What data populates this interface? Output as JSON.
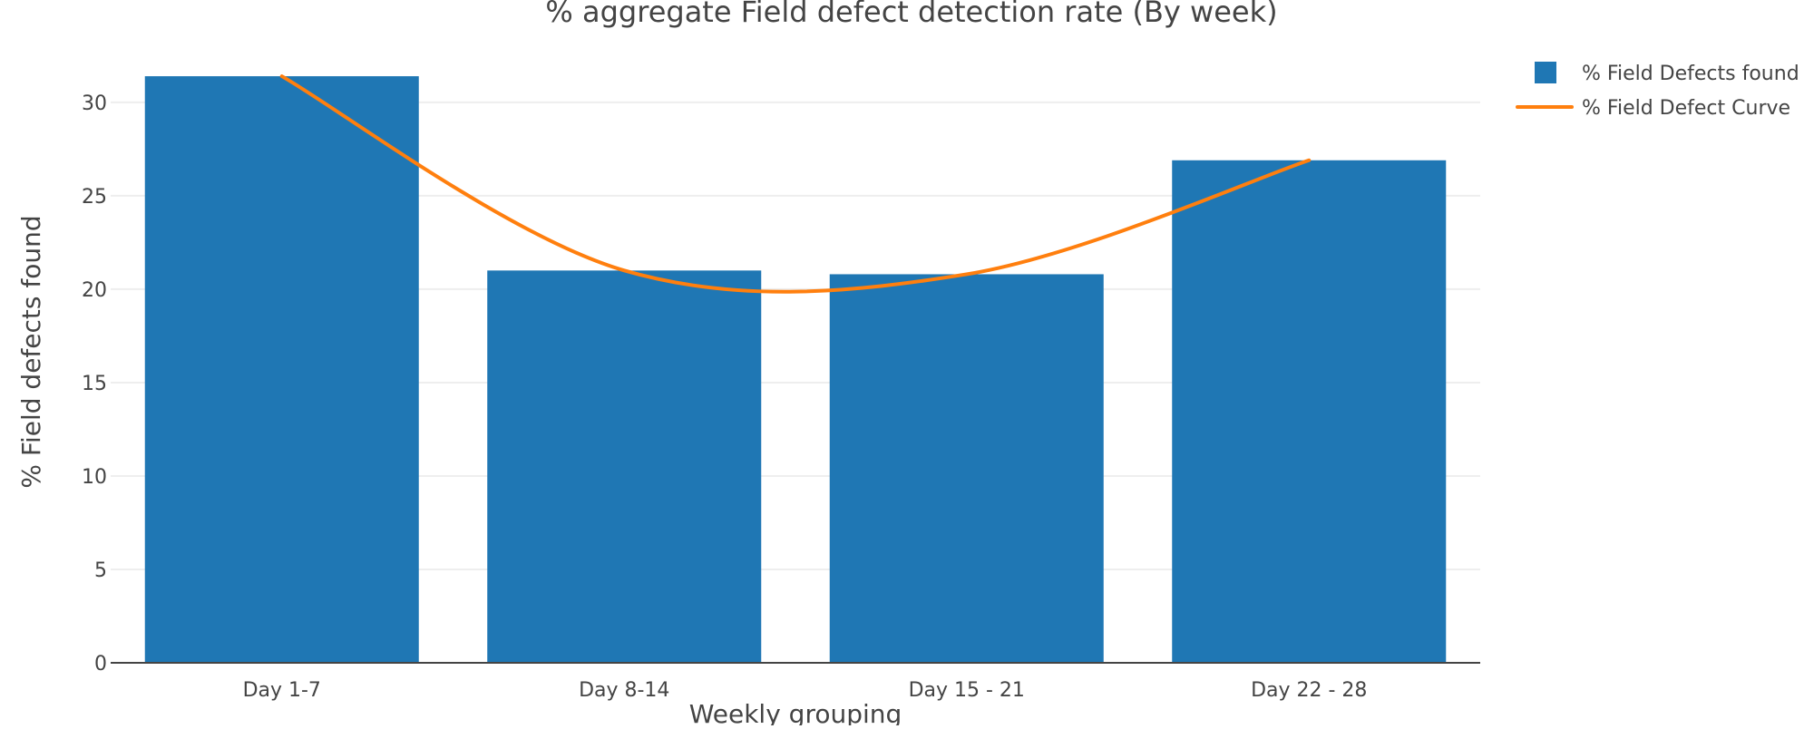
{
  "chart_data": {
    "type": "bar",
    "title": "% aggregate Field defect detection rate (By week)",
    "xlabel": "Weekly grouping",
    "ylabel": "% Field defects found",
    "categories": [
      "Day 1-7",
      "Day 8-14",
      "Day 15 - 21",
      "Day 22 - 28"
    ],
    "series": [
      {
        "name": "% Field Defects found",
        "type": "bar",
        "color": "#1f77b4",
        "values": [
          31.4,
          21.0,
          20.8,
          26.9
        ]
      },
      {
        "name": "% Field Defect Curve",
        "type": "line",
        "color": "#ff7f0e",
        "values": [
          31.4,
          21.0,
          20.8,
          26.9
        ],
        "smooth": true
      }
    ],
    "ylim": [
      0,
      31.5
    ],
    "yticks": [
      0,
      5,
      10,
      15,
      20,
      25,
      30
    ],
    "grid": true,
    "legend_position": "top-right"
  }
}
